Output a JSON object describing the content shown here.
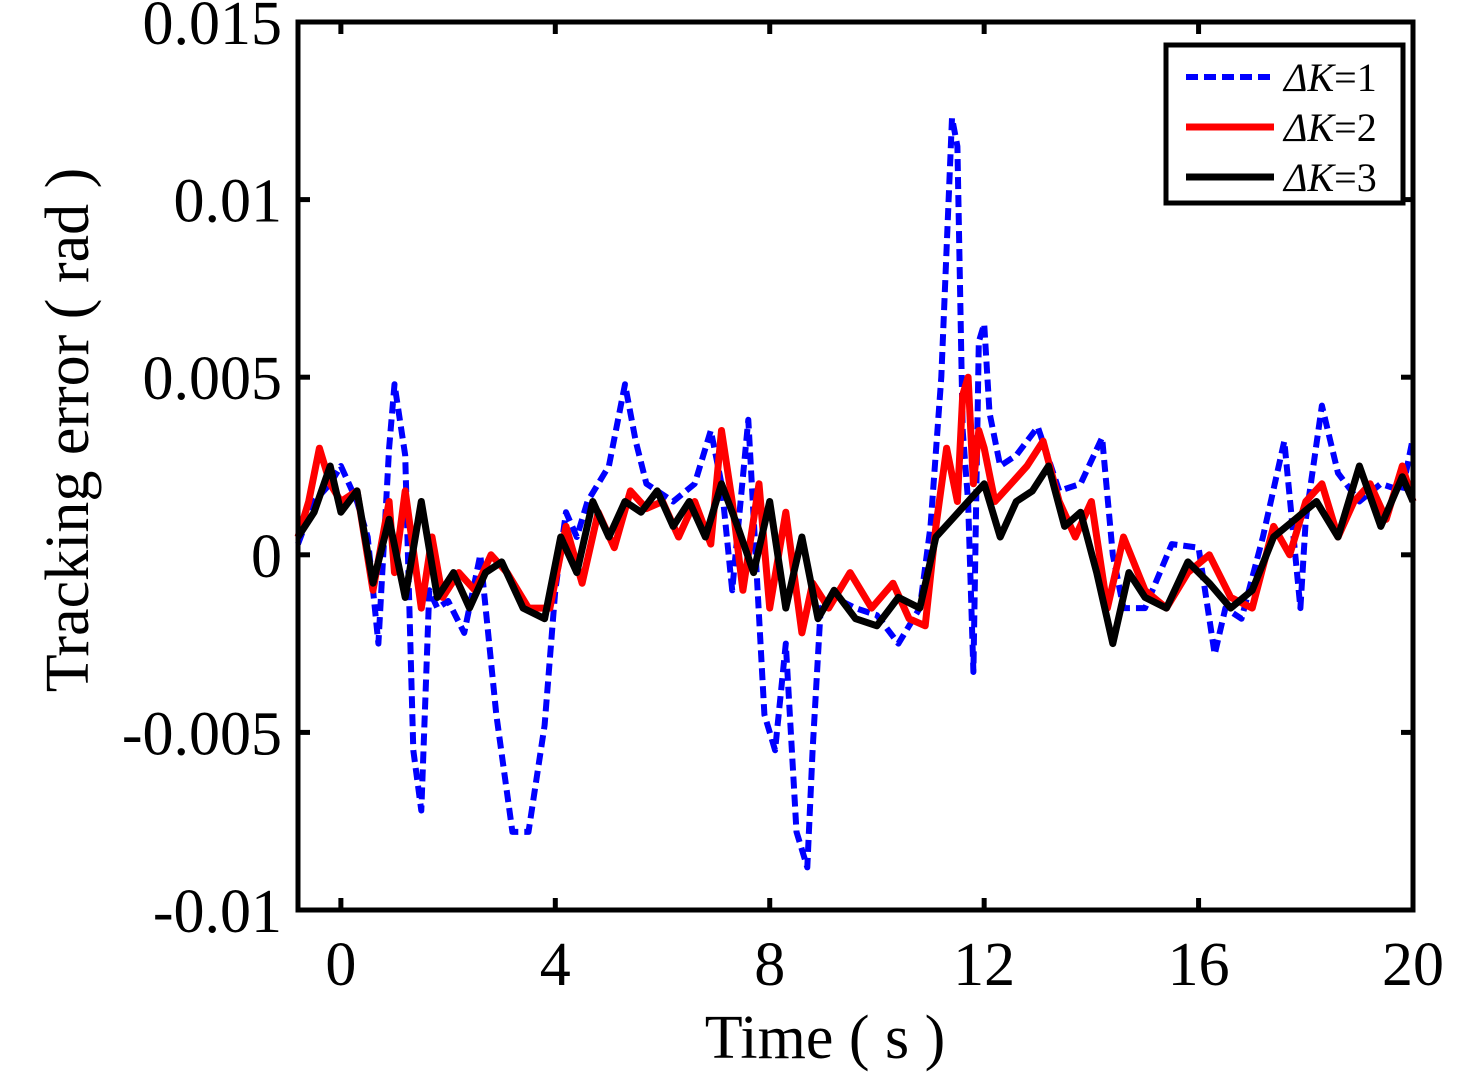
{
  "chart_data": {
    "type": "line",
    "title": "",
    "xlabel": "Time  ( s )",
    "ylabel": "Tracking error ( rad )",
    "xlim": [
      -0.8,
      20
    ],
    "ylim": [
      -0.01,
      0.015
    ],
    "xticks": [
      0,
      4,
      8,
      12,
      16,
      20
    ],
    "xtick_labels": [
      "0",
      "4",
      "8",
      "12",
      "16",
      "20"
    ],
    "yticks": [
      -0.01,
      -0.005,
      0,
      0.005,
      0.01,
      0.015
    ],
    "ytick_labels": [
      "-0.01",
      "-0.005",
      "0",
      "0.005",
      "0.01",
      "0.015"
    ],
    "grid": false,
    "legend_position": "top-right",
    "series": [
      {
        "name": "ΔK = 1",
        "label_prefix": "ΔK",
        "label_value": "1",
        "color": "#0000ff",
        "style": "dashed",
        "x": [
          -0.8,
          -0.5,
          -0.2,
          0,
          0.3,
          0.5,
          0.7,
          0.9,
          1.0,
          1.2,
          1.35,
          1.5,
          1.65,
          1.8,
          2.0,
          2.3,
          2.6,
          2.9,
          3.2,
          3.5,
          3.8,
          4.0,
          4.2,
          4.4,
          4.6,
          5.0,
          5.3,
          5.5,
          5.7,
          5.9,
          6.2,
          6.6,
          6.9,
          7.1,
          7.3,
          7.6,
          7.9,
          8.1,
          8.3,
          8.5,
          8.7,
          8.8,
          8.95,
          9.2,
          9.6,
          10.0,
          10.4,
          10.8,
          11.0,
          11.2,
          11.4,
          11.5,
          11.6,
          11.7,
          11.8,
          11.9,
          12.0,
          12.1,
          12.3,
          12.6,
          13.0,
          13.4,
          13.8,
          14.2,
          14.4,
          14.6,
          15.0,
          15.5,
          16.0,
          16.3,
          16.5,
          16.8,
          17.2,
          17.6,
          17.9,
          18.0,
          18.3,
          18.6,
          19.0,
          19.4,
          19.8,
          20.0
        ],
        "y": [
          0.0003,
          0.0015,
          0.002,
          0.0025,
          0.0015,
          0.0005,
          -0.0025,
          0.003,
          0.0048,
          0.0028,
          -0.0055,
          -0.0072,
          -0.001,
          -0.0015,
          -0.0013,
          -0.0022,
          0.0,
          -0.0045,
          -0.0078,
          -0.0078,
          -0.0048,
          -0.001,
          0.0012,
          0.0005,
          0.0015,
          0.0025,
          0.0048,
          0.0032,
          0.002,
          0.0018,
          0.0015,
          0.002,
          0.0035,
          0.002,
          -0.001,
          0.0038,
          -0.0045,
          -0.0055,
          -0.0025,
          -0.0078,
          -0.0088,
          -0.0055,
          -0.0015,
          -0.0012,
          -0.0015,
          -0.0017,
          -0.0025,
          -0.0015,
          0.0008,
          0.005,
          0.0123,
          0.0115,
          0.0035,
          0.0015,
          -0.0033,
          0.006,
          0.0065,
          0.004,
          0.0025,
          0.0028,
          0.0036,
          0.0018,
          0.002,
          0.0033,
          0.0,
          -0.0015,
          -0.0015,
          0.0003,
          0.0002,
          -0.0028,
          -0.0015,
          -0.0018,
          0.0005,
          0.0032,
          -0.0015,
          0.001,
          0.0042,
          0.0023,
          0.0015,
          0.002,
          0.0018,
          0.0033
        ]
      },
      {
        "name": "ΔK = 2",
        "label_prefix": "ΔK",
        "label_value": "2",
        "color": "#ff0000",
        "style": "solid",
        "x": [
          -0.8,
          -0.6,
          -0.4,
          -0.2,
          0,
          0.3,
          0.6,
          0.9,
          1.0,
          1.2,
          1.5,
          1.7,
          1.9,
          2.2,
          2.5,
          2.8,
          3.1,
          3.5,
          3.9,
          4.2,
          4.5,
          4.8,
          5.1,
          5.4,
          5.7,
          6.0,
          6.3,
          6.6,
          6.9,
          7.1,
          7.3,
          7.5,
          7.8,
          8.0,
          8.3,
          8.6,
          8.8,
          9.1,
          9.5,
          9.9,
          10.3,
          10.6,
          10.9,
          11.1,
          11.3,
          11.5,
          11.6,
          11.7,
          11.8,
          11.9,
          12.0,
          12.2,
          12.5,
          12.8,
          13.1,
          13.4,
          13.7,
          14.0,
          14.3,
          14.6,
          15.0,
          15.4,
          15.8,
          16.2,
          16.6,
          17.0,
          17.4,
          17.7,
          18.0,
          18.3,
          18.6,
          18.9,
          19.2,
          19.5,
          19.8,
          20.0
        ],
        "y": [
          0.0005,
          0.0015,
          0.003,
          0.002,
          0.0015,
          0.0018,
          -0.001,
          0.0015,
          -0.0005,
          0.0018,
          -0.0015,
          0.0005,
          -0.0012,
          -0.0005,
          -0.001,
          0.0,
          -0.0005,
          -0.0015,
          -0.0015,
          0.0008,
          -0.0008,
          0.0012,
          0.0002,
          0.0018,
          0.0013,
          0.0015,
          0.0005,
          0.0015,
          0.0003,
          0.0035,
          0.0015,
          -0.001,
          0.002,
          -0.0015,
          0.0012,
          -0.0022,
          -0.0008,
          -0.0015,
          -0.0005,
          -0.0015,
          -0.0008,
          -0.0018,
          -0.002,
          0.0008,
          0.003,
          0.0015,
          0.0045,
          0.005,
          0.002,
          0.0035,
          0.003,
          0.0015,
          0.002,
          0.0025,
          0.0032,
          0.0015,
          0.0005,
          0.0015,
          -0.0015,
          0.0005,
          -0.001,
          -0.0015,
          -0.0005,
          0.0,
          -0.0012,
          -0.0015,
          0.0008,
          0.0,
          0.0015,
          0.002,
          0.0005,
          0.0015,
          0.002,
          0.001,
          0.0025,
          0.0015
        ]
      },
      {
        "name": "ΔK = 3",
        "label_prefix": "ΔK",
        "label_value": "3",
        "color": "#000000",
        "style": "solid",
        "x": [
          -0.8,
          -0.5,
          -0.2,
          0,
          0.3,
          0.6,
          0.9,
          1.2,
          1.5,
          1.8,
          2.1,
          2.4,
          2.7,
          3.0,
          3.4,
          3.8,
          4.1,
          4.4,
          4.7,
          5.0,
          5.3,
          5.6,
          5.9,
          6.2,
          6.5,
          6.8,
          7.1,
          7.4,
          7.7,
          8.0,
          8.3,
          8.6,
          8.9,
          9.2,
          9.6,
          10.0,
          10.4,
          10.8,
          11.1,
          11.4,
          11.7,
          12.0,
          12.3,
          12.6,
          12.9,
          13.2,
          13.5,
          13.8,
          14.1,
          14.4,
          14.7,
          15.0,
          15.4,
          15.8,
          16.2,
          16.6,
          17.0,
          17.4,
          17.8,
          18.2,
          18.6,
          19.0,
          19.4,
          19.8,
          20.0
        ],
        "y": [
          0.0005,
          0.0012,
          0.0025,
          0.0012,
          0.0018,
          -0.0008,
          0.001,
          -0.0012,
          0.0015,
          -0.0012,
          -0.0005,
          -0.0015,
          -0.0005,
          -0.0002,
          -0.0015,
          -0.0018,
          0.0005,
          -0.0005,
          0.0015,
          0.0005,
          0.0015,
          0.0012,
          0.0018,
          0.0008,
          0.0015,
          0.0005,
          0.002,
          0.0008,
          -0.0005,
          0.0015,
          -0.0015,
          0.0005,
          -0.0018,
          -0.001,
          -0.0018,
          -0.002,
          -0.0012,
          -0.0015,
          0.0005,
          0.001,
          0.0015,
          0.002,
          0.0005,
          0.0015,
          0.0018,
          0.0025,
          0.0008,
          0.0012,
          -0.0005,
          -0.0025,
          -0.0005,
          -0.0012,
          -0.0015,
          -0.0002,
          -0.0008,
          -0.0015,
          -0.001,
          0.0005,
          0.001,
          0.0015,
          0.0005,
          0.0025,
          0.0008,
          0.0022,
          0.0015
        ]
      }
    ]
  }
}
